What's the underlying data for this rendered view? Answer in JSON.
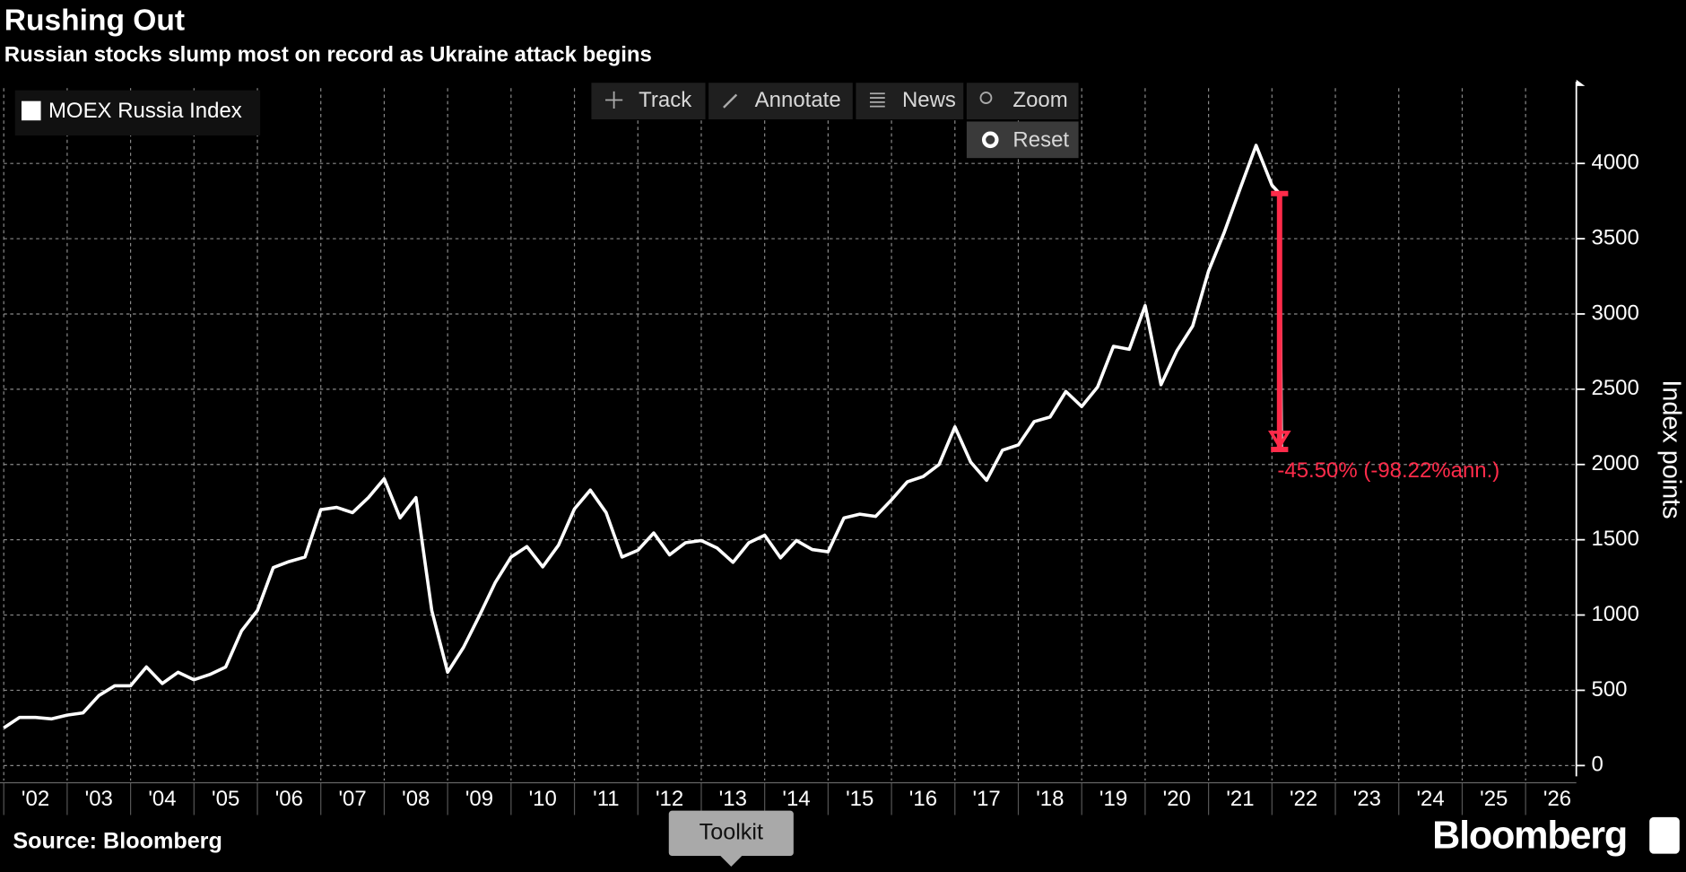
{
  "chart_data": {
    "type": "line",
    "title": "Rushing Out",
    "subtitle": "Russian stocks slump most on record as Ukraine attack begins",
    "y_label": "Index points",
    "x": [
      2002,
      2002.25,
      2002.5,
      2002.75,
      2003,
      2003.25,
      2003.5,
      2003.75,
      2004,
      2004.25,
      2004.5,
      2004.75,
      2005,
      2005.25,
      2005.5,
      2005.75,
      2006,
      2006.25,
      2006.5,
      2006.75,
      2007,
      2007.25,
      2007.5,
      2007.75,
      2008,
      2008.25,
      2008.5,
      2008.75,
      2009,
      2009.25,
      2009.5,
      2009.75,
      2010,
      2010.25,
      2010.5,
      2010.75,
      2011,
      2011.25,
      2011.5,
      2011.75,
      2012,
      2012.25,
      2012.5,
      2012.75,
      2013,
      2013.25,
      2013.5,
      2013.75,
      2014,
      2014.25,
      2014.5,
      2014.75,
      2015,
      2015.25,
      2015.5,
      2015.75,
      2016,
      2016.25,
      2016.5,
      2016.75,
      2017,
      2017.25,
      2017.5,
      2017.75,
      2018,
      2018.25,
      2018.5,
      2018.75,
      2019,
      2019.25,
      2019.5,
      2019.75,
      2020,
      2020.25,
      2020.5,
      2020.75,
      2021,
      2021.25,
      2021.5,
      2021.75,
      2022,
      2022.12,
      2022.15
    ],
    "series": [
      {
        "name": "MOEX Russia Index",
        "color": "#ffffff",
        "values": [
          250,
          320,
          320,
          310,
          335,
          350,
          465,
          530,
          530,
          655,
          545,
          620,
          570,
          605,
          655,
          895,
          1030,
          1315,
          1355,
          1385,
          1700,
          1715,
          1680,
          1780,
          1905,
          1645,
          1780,
          1030,
          620,
          785,
          995,
          1215,
          1385,
          1455,
          1320,
          1465,
          1705,
          1830,
          1680,
          1385,
          1430,
          1545,
          1400,
          1480,
          1495,
          1445,
          1350,
          1480,
          1530,
          1380,
          1495,
          1435,
          1420,
          1645,
          1670,
          1655,
          1765,
          1885,
          1920,
          2000,
          2250,
          2015,
          1895,
          2095,
          2130,
          2285,
          2315,
          2485,
          2385,
          2515,
          2785,
          2765,
          3055,
          2530,
          2755,
          2920,
          3285,
          3545,
          3835,
          4120,
          3855,
          3800,
          2100
        ]
      }
    ],
    "xlim": [
      2002,
      2026.8
    ],
    "xticks": [
      {
        "value": 2002,
        "label": "'02"
      },
      {
        "value": 2003,
        "label": "'03"
      },
      {
        "value": 2004,
        "label": "'04"
      },
      {
        "value": 2005,
        "label": "'05"
      },
      {
        "value": 2006,
        "label": "'06"
      },
      {
        "value": 2007,
        "label": "'07"
      },
      {
        "value": 2008,
        "label": "'08"
      },
      {
        "value": 2009,
        "label": "'09"
      },
      {
        "value": 2010,
        "label": "'10"
      },
      {
        "value": 2011,
        "label": "'11"
      },
      {
        "value": 2012,
        "label": "'12"
      },
      {
        "value": 2013,
        "label": "'13"
      },
      {
        "value": 2014,
        "label": "'14"
      },
      {
        "value": 2015,
        "label": "'15"
      },
      {
        "value": 2016,
        "label": "'16"
      },
      {
        "value": 2017,
        "label": "'17"
      },
      {
        "value": 2018,
        "label": "'18"
      },
      {
        "value": 2019,
        "label": "'19"
      },
      {
        "value": 2020,
        "label": "'20"
      },
      {
        "value": 2021,
        "label": "'21"
      },
      {
        "value": 2022,
        "label": "'22"
      },
      {
        "value": 2023,
        "label": "'23"
      },
      {
        "value": 2024,
        "label": "'24"
      },
      {
        "value": 2025,
        "label": "'25"
      },
      {
        "value": 2026,
        "label": "'26"
      }
    ],
    "ylim": [
      0,
      4500
    ],
    "yticks": [
      0,
      500,
      1000,
      1500,
      2000,
      2500,
      3000,
      3500,
      4000
    ],
    "grid": true,
    "legend": "top-left",
    "annotation": {
      "text": "-45.50% (-98.22%ann.)",
      "x": 2022.12,
      "y_start": 3800,
      "y_end": 2100,
      "color": "#ff2b4a"
    }
  },
  "toolbar": [
    "Track",
    "Annotate",
    "News",
    "Zoom"
  ],
  "reset": "Reset",
  "source": "Source: Bloomberg",
  "brand": "Bloomberg",
  "toolkit": "Toolkit"
}
